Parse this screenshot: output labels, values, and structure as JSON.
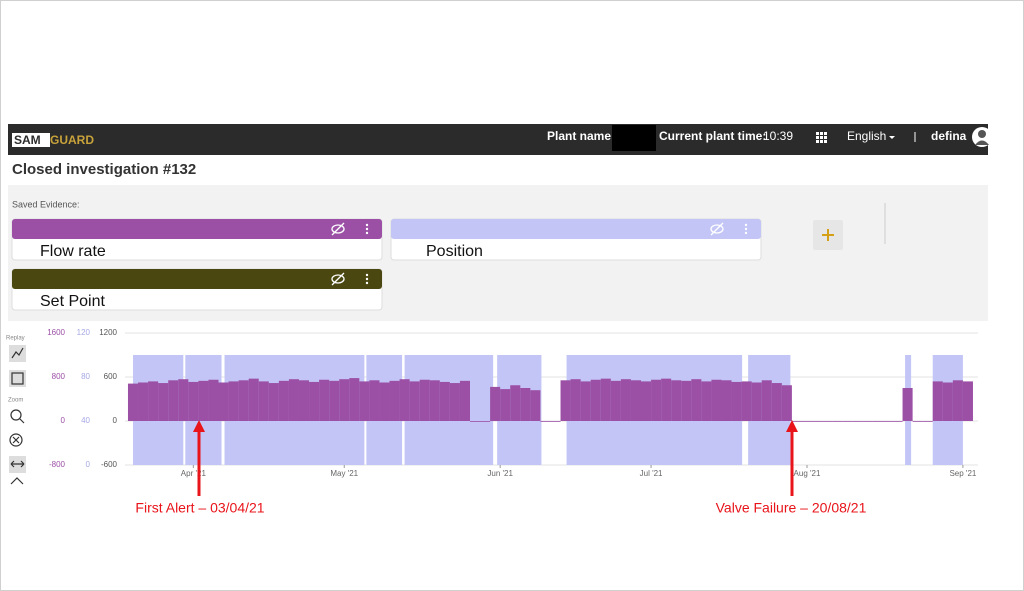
{
  "header": {
    "logo_left": "SAM",
    "logo_right": "GUARD",
    "plant_name_label": "Plant name:",
    "current_time_label": "Current plant time:",
    "current_time": "10:39",
    "language": "English",
    "user": "defina"
  },
  "page": {
    "title": "Closed investigation #132",
    "saved_evidence_label": "Saved Evidence:"
  },
  "evidence": [
    {
      "name": "Flow rate",
      "color": "#9b4fa5"
    },
    {
      "name": "Position",
      "color": "#c2c5f5"
    },
    {
      "name": "Set Point",
      "color": "#4a4710"
    }
  ],
  "toolbar": {
    "replay": "Replay",
    "zoom": "Zoom"
  },
  "chart_data": {
    "type": "bar",
    "xlim": [
      -12,
      156
    ],
    "xticks": [
      {
        "value": 0,
        "label": "Apr '21"
      },
      {
        "value": 30,
        "label": "May '21"
      },
      {
        "value": 61,
        "label": "Jun '21"
      },
      {
        "value": 91,
        "label": "Jul '21"
      },
      {
        "value": 122,
        "label": "Aug '21"
      },
      {
        "value": 153,
        "label": "Sep '21"
      }
    ],
    "ylim": [
      -800,
      1600
    ],
    "yticks": [
      -800,
      0,
      800,
      1600
    ],
    "ycolor": "#9b4fa5",
    "y2lim": [
      0,
      120
    ],
    "y2ticks": [
      0,
      40,
      80,
      120
    ],
    "y2color": "#a6a8e6",
    "y3lim": [
      -600,
      1200
    ],
    "y3ticks": [
      -600,
      0,
      600,
      1200
    ],
    "y3color": "#555555",
    "grid": true,
    "series": [
      {
        "name": "Position",
        "color": "#c2c5f5",
        "axis": "y2",
        "x_start": [
          -12,
          -1.6,
          6.2,
          34.4,
          42,
          60.4,
          74.2,
          110.3,
          141.5,
          147
        ],
        "x_end": [
          -2,
          5.6,
          34,
          41.5,
          59.6,
          69.2,
          109.1,
          118.7,
          142.7,
          153
        ],
        "values": [
          100,
          100,
          100,
          100,
          100,
          100,
          100,
          100,
          100,
          100
        ]
      },
      {
        "name": "Flow rate",
        "color": "#9b4fa5",
        "axis": "y",
        "x": [
          -12,
          -10,
          -8,
          -6,
          -4,
          -2,
          0,
          2,
          4,
          6,
          8,
          10,
          12,
          14,
          16,
          18,
          20,
          22,
          24,
          26,
          28,
          30,
          32,
          34,
          36,
          38,
          40,
          42,
          44,
          46,
          48,
          50,
          52,
          54,
          56,
          58,
          60,
          62,
          64,
          66,
          68,
          70,
          72,
          74,
          76,
          78,
          80,
          82,
          84,
          86,
          88,
          90,
          92,
          94,
          96,
          98,
          100,
          102,
          104,
          106,
          108,
          110,
          112,
          114,
          116,
          118,
          120,
          122,
          124,
          126,
          128,
          130,
          132,
          134,
          136,
          138,
          140,
          142,
          144,
          146,
          148,
          150,
          152,
          154
        ],
        "values": [
          680,
          700,
          720,
          690,
          740,
          760,
          710,
          730,
          750,
          700,
          720,
          740,
          770,
          720,
          690,
          730,
          760,
          740,
          710,
          750,
          730,
          760,
          780,
          720,
          740,
          700,
          730,
          760,
          720,
          750,
          740,
          710,
          690,
          730,
          0,
          0,
          620,
          580,
          650,
          600,
          560,
          0,
          0,
          740,
          760,
          720,
          750,
          770,
          730,
          760,
          740,
          720,
          750,
          770,
          740,
          730,
          760,
          720,
          750,
          740,
          710,
          720,
          700,
          740,
          690,
          650,
          0,
          0,
          0,
          0,
          0,
          0,
          0,
          0,
          0,
          0,
          0,
          600,
          0,
          0,
          720,
          700,
          740,
          720
        ]
      }
    ],
    "annotations": [
      "First Alert – 03/04/21",
      "Valve Failure – 20/08/21"
    ]
  }
}
